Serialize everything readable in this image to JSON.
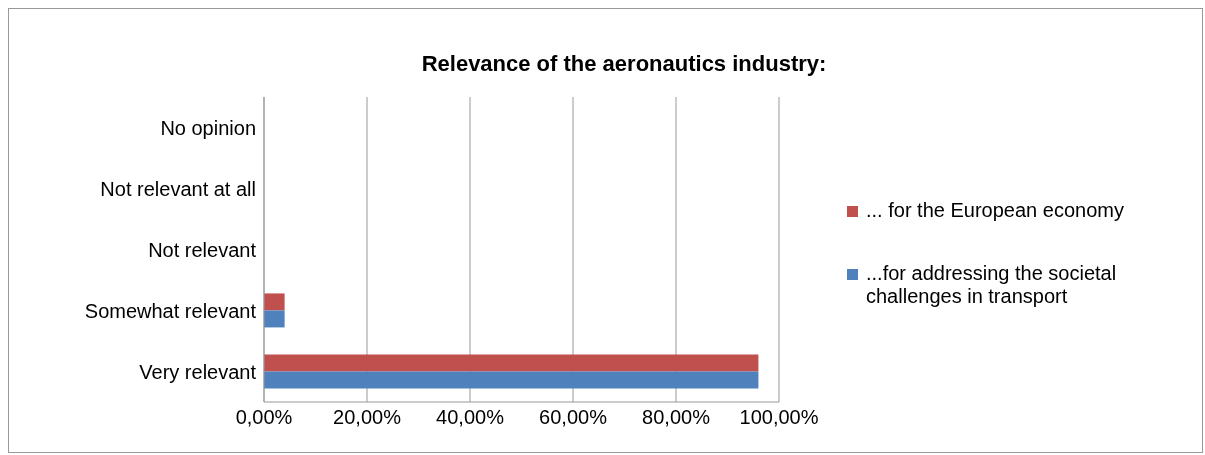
{
  "chart_data": {
    "type": "bar",
    "orientation": "horizontal",
    "title": "Relevance of the aeronautics industry:",
    "categories": [
      "No opinion",
      "Not relevant at all",
      "Not relevant",
      "Somewhat relevant",
      "Very relevant"
    ],
    "series": [
      {
        "name": "... for the European economy",
        "color": "#c0504d",
        "values": [
          0,
          0,
          0,
          4,
          96
        ]
      },
      {
        "name": "...for addressing the societal challenges in transport",
        "color": "#4f81bd",
        "values": [
          0,
          0,
          0,
          4,
          96
        ]
      }
    ],
    "xlim": [
      0,
      100
    ],
    "xticks": [
      {
        "value": 0,
        "label": "0,00%"
      },
      {
        "value": 20,
        "label": "20,00%"
      },
      {
        "value": 40,
        "label": "40,00%"
      },
      {
        "value": 60,
        "label": "60,00%"
      },
      {
        "value": 80,
        "label": "80,00%"
      },
      {
        "value": 100,
        "label": "100,00%"
      }
    ],
    "grid": "x",
    "legend": "right"
  }
}
